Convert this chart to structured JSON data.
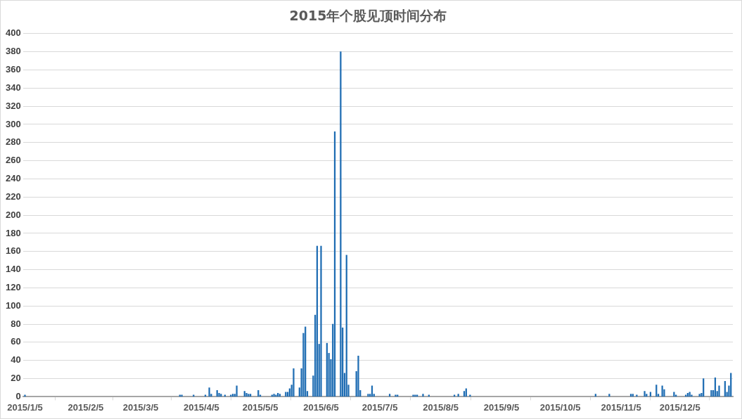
{
  "chart_data": {
    "type": "bar",
    "title": "2015年个股见顶时间分布",
    "color": "#1f6db3",
    "grid": "y",
    "x": [
      "2015-01-05",
      "2015-03-25",
      "2015-03-26",
      "2015-04-01",
      "2015-04-07",
      "2015-04-09",
      "2015-04-10",
      "2015-04-13",
      "2015-04-14",
      "2015-04-15",
      "2015-04-17",
      "2015-04-20",
      "2015-04-21",
      "2015-04-22",
      "2015-04-23",
      "2015-04-27",
      "2015-04-28",
      "2015-04-29",
      "2015-04-30",
      "2015-05-04",
      "2015-05-05",
      "2015-05-11",
      "2015-05-12",
      "2015-05-13",
      "2015-05-14",
      "2015-05-15",
      "2015-05-18",
      "2015-05-19",
      "2015-05-20",
      "2015-05-21",
      "2015-05-22",
      "2015-05-25",
      "2015-05-26",
      "2015-05-27",
      "2015-05-28",
      "2015-05-29",
      "2015-06-01",
      "2015-06-02",
      "2015-06-03",
      "2015-06-04",
      "2015-06-05",
      "2015-06-08",
      "2015-06-09",
      "2015-06-10",
      "2015-06-11",
      "2015-06-12",
      "2015-06-15",
      "2015-06-16",
      "2015-06-17",
      "2015-06-18",
      "2015-06-19",
      "2015-06-23",
      "2015-06-24",
      "2015-06-25",
      "2015-06-29",
      "2015-06-30",
      "2015-07-01",
      "2015-07-02",
      "2015-07-10",
      "2015-07-13",
      "2015-07-14",
      "2015-07-22",
      "2015-07-23",
      "2015-07-24",
      "2015-07-27",
      "2015-07-30",
      "2015-08-12",
      "2015-08-14",
      "2015-08-17",
      "2015-08-18",
      "2015-08-20",
      "2015-10-23",
      "2015-10-30",
      "2015-11-10",
      "2015-11-11",
      "2015-11-13",
      "2015-11-17",
      "2015-11-18",
      "2015-11-20",
      "2015-11-23",
      "2015-11-24",
      "2015-11-26",
      "2015-11-27",
      "2015-12-02",
      "2015-12-03",
      "2015-12-08",
      "2015-12-09",
      "2015-12-10",
      "2015-12-11",
      "2015-12-15",
      "2015-12-16",
      "2015-12-17",
      "2015-12-21",
      "2015-12-22",
      "2015-12-23",
      "2015-12-24",
      "2015-12-25",
      "2015-12-28",
      "2015-12-29",
      "2015-12-30",
      "2015-12-31"
    ],
    "values": [
      2,
      2,
      2,
      2,
      2,
      10,
      3,
      7,
      4,
      3,
      2,
      2,
      3,
      3,
      12,
      6,
      4,
      3,
      3,
      7,
      2,
      2,
      3,
      2,
      4,
      3,
      5,
      5,
      9,
      13,
      31,
      10,
      31,
      70,
      77,
      6,
      23,
      90,
      166,
      58,
      166,
      59,
      48,
      41,
      80,
      292,
      380,
      76,
      26,
      156,
      13,
      28,
      45,
      7,
      3,
      3,
      12,
      3,
      3,
      2,
      2,
      2,
      2,
      2,
      3,
      2,
      2,
      3,
      6,
      9,
      2,
      3,
      3,
      3,
      3,
      2,
      6,
      3,
      5,
      13,
      3,
      12,
      8,
      5,
      2,
      2,
      4,
      5,
      2,
      3,
      4,
      20,
      7,
      7,
      21,
      6,
      12,
      17,
      5,
      12,
      26
    ],
    "xlim": [
      "2015-01-04",
      "2016-01-01"
    ],
    "xticks": [
      {
        "value": "2015-01-05",
        "label": "2015/1/5"
      },
      {
        "value": "2015-02-05",
        "label": "2015/2/5"
      },
      {
        "value": "2015-03-05",
        "label": "2015/3/5"
      },
      {
        "value": "2015-04-05",
        "label": "2015/4/5"
      },
      {
        "value": "2015-05-05",
        "label": "2015/5/5"
      },
      {
        "value": "2015-06-05",
        "label": "2015/6/5"
      },
      {
        "value": "2015-07-05",
        "label": "2015/7/5"
      },
      {
        "value": "2015-08-05",
        "label": "2015/8/5"
      },
      {
        "value": "2015-09-05",
        "label": "2015/9/5"
      },
      {
        "value": "2015-10-05",
        "label": "2015/10/5"
      },
      {
        "value": "2015-11-05",
        "label": "2015/11/5"
      },
      {
        "value": "2015-12-05",
        "label": "2015/12/5"
      }
    ],
    "ylim": [
      0,
      400
    ],
    "yticks": [
      0,
      20,
      40,
      60,
      80,
      100,
      120,
      140,
      160,
      180,
      200,
      220,
      240,
      260,
      280,
      300,
      320,
      340,
      360,
      380,
      400
    ]
  }
}
